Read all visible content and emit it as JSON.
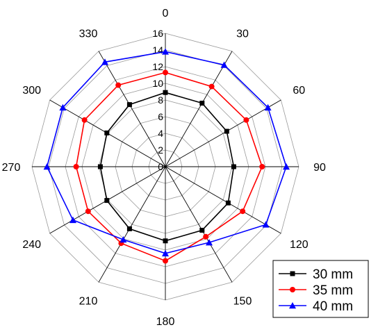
{
  "chart_data": {
    "type": "radar",
    "angles": [
      "0",
      "30",
      "60",
      "90",
      "120",
      "150",
      "180",
      "210",
      "240",
      "270",
      "300",
      "330"
    ],
    "radial_ticks": [
      "0",
      "2",
      "4",
      "6",
      "8",
      "10",
      "12",
      "14",
      "16"
    ],
    "rlim": [
      0,
      16
    ],
    "grid": true,
    "legend_position": "bottom-right",
    "series": [
      {
        "name": "30 mm",
        "color": "#000000",
        "marker": "square",
        "values": [
          8.9,
          8.8,
          8.5,
          8.2,
          8.7,
          8.8,
          8.9,
          8.6,
          8.1,
          7.8,
          8.1,
          8.6
        ]
      },
      {
        "name": "35 mm",
        "color": "#ff0000",
        "marker": "circle",
        "values": [
          11.3,
          11.1,
          11.2,
          11.6,
          10.7,
          9.7,
          11.3,
          10.6,
          10.7,
          10.7,
          11.2,
          11.3
        ]
      },
      {
        "name": "40 mm",
        "color": "#0000ff",
        "marker": "triangle",
        "values": [
          13.8,
          14.1,
          14.2,
          14.5,
          13.9,
          10.5,
          10.4,
          10.1,
          12.8,
          14.2,
          14.2,
          14.5
        ]
      }
    ]
  }
}
